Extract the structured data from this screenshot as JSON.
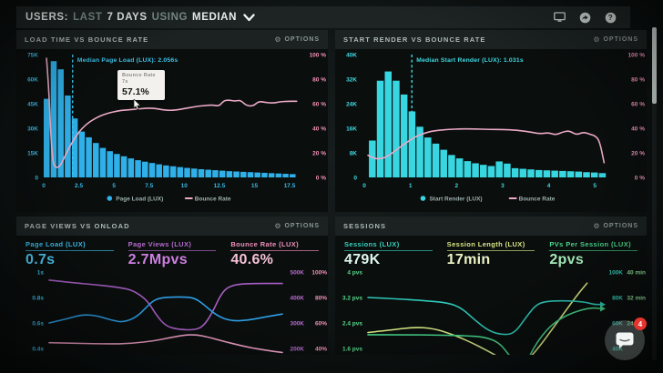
{
  "header": {
    "parts": [
      {
        "text": "USERS:"
      },
      {
        "text": "LAST"
      },
      {
        "text": "7 DAYS"
      },
      {
        "text": "USING"
      },
      {
        "text": "MEDIAN"
      }
    ],
    "icons": [
      "display-icon",
      "share-icon",
      "help-icon"
    ],
    "help_glyph": "?"
  },
  "labels": {
    "options": "OPTIONS",
    "gear_glyph": "⚙"
  },
  "panels": {
    "load_time": {
      "title": "LOAD TIME VS BOUNCE RATE",
      "tooltip": {
        "line1": "Bounce Rate",
        "line2": "7s",
        "value": "57.1%"
      }
    },
    "start_render": {
      "title": "START RENDER VS BOUNCE RATE"
    },
    "page_views": {
      "title": "PAGE VIEWS VS ONLOAD",
      "metrics": [
        {
          "label": "Page Load (LUX)",
          "value": "0.7s",
          "color": "#3cc0ee"
        },
        {
          "label": "Page Views (LUX)",
          "value": "2.7Mpvs",
          "color": "#b56cce"
        },
        {
          "label": "Bounce Rate (LUX)",
          "value": "40.6%",
          "color": "#f291bb"
        }
      ]
    },
    "sessions": {
      "title": "SESSIONS",
      "metrics": [
        {
          "label": "Sessions (LUX)",
          "value": "479K",
          "color": "#38d0bd"
        },
        {
          "label": "Session Length (LUX)",
          "value": "17min",
          "color": "#d9e884"
        },
        {
          "label": "PVs Per Session (LUX)",
          "value": "2pvs",
          "color": "#4bd88e"
        }
      ]
    }
  },
  "chat": {
    "badge": "4"
  },
  "chart_data": {
    "load_time": {
      "type": "bar",
      "bar_color": "#2fb0e8",
      "axis_color": "#3ab8e6",
      "right_color": "#f191b8",
      "line_color": "#ecaac6",
      "median_color": "#3fc4ea",
      "y_max": 75,
      "y_ticks": [
        "75K",
        "60K",
        "45K",
        "30K",
        "15K",
        "0"
      ],
      "right_ticks": [
        "100 %",
        "80 %",
        "60 %",
        "40 %",
        "20 %",
        "0 %"
      ],
      "x_ticks": [
        [
          0,
          "0"
        ],
        [
          2.5,
          "2.5"
        ],
        [
          5,
          "5"
        ],
        [
          7.5,
          "7.5"
        ],
        [
          10,
          "10"
        ],
        [
          12.5,
          "12.5"
        ],
        [
          15,
          "15"
        ],
        [
          17.5,
          "17.5"
        ]
      ],
      "bin": 0.5,
      "bars": [
        48,
        71,
        66,
        50,
        36,
        28,
        24.5,
        21,
        18,
        16,
        14.3,
        12.9,
        11.6,
        10.5,
        9.6,
        8.8,
        8,
        7.3,
        6.8,
        6.3,
        5.8,
        5.4,
        5,
        4.7,
        4.4,
        4.1,
        3.8,
        3.6,
        3.4,
        3.2,
        3,
        2.8,
        2.6,
        2.4,
        2.2,
        2
      ],
      "median_t": 2.056,
      "median_label": "Median Page Load (LUX): 2.056s",
      "line": [
        [
          0.2,
          97
        ],
        [
          0.35,
          75
        ],
        [
          0.5,
          35
        ],
        [
          0.65,
          13
        ],
        [
          0.8,
          8.5
        ],
        [
          1.0,
          8
        ],
        [
          1.2,
          10
        ],
        [
          1.5,
          17
        ],
        [
          1.8,
          24
        ],
        [
          2.1,
          30
        ],
        [
          2.5,
          37
        ],
        [
          3,
          43
        ],
        [
          3.5,
          47
        ],
        [
          4,
          50
        ],
        [
          4.5,
          52
        ],
        [
          5,
          53.5
        ],
        [
          5.5,
          54.5
        ],
        [
          6,
          55
        ],
        [
          6.5,
          55.5
        ],
        [
          7,
          56
        ],
        [
          7.5,
          56.5
        ],
        [
          8,
          56
        ],
        [
          8.5,
          55
        ],
        [
          9,
          54.5
        ],
        [
          9.5,
          55
        ],
        [
          10,
          56
        ],
        [
          10.5,
          57
        ],
        [
          11,
          58
        ],
        [
          11.5,
          58.5
        ],
        [
          12,
          59
        ],
        [
          12.5,
          58
        ],
        [
          12.8,
          62.5
        ],
        [
          13.2,
          63
        ],
        [
          13.6,
          62
        ],
        [
          14,
          63
        ],
        [
          14.4,
          58.5
        ],
        [
          14.9,
          58
        ],
        [
          15.3,
          62
        ],
        [
          15.8,
          61
        ],
        [
          16.3,
          60.5
        ],
        [
          16.8,
          61.5
        ],
        [
          17.3,
          62
        ],
        [
          18,
          62
        ]
      ],
      "legend": [
        {
          "label": "Page Load (LUX)",
          "color": "#2fb0e8",
          "marker": "dot"
        },
        {
          "label": "Bounce Rate",
          "color": "#ecaac6",
          "marker": "line"
        }
      ]
    },
    "start_render": {
      "type": "bar",
      "bar_color": "#38d6e0",
      "axis_color": "#3fd9e2",
      "right_color": "#f191b8",
      "line_color": "#ecaac6",
      "median_color": "#3fd9e2",
      "y_max": 40,
      "y_ticks": [
        "40K",
        "32K",
        "24K",
        "16K",
        "8K",
        "0"
      ],
      "right_ticks": [
        "100 %",
        "80 %",
        "60 %",
        "40 %",
        "20 %",
        "0 %"
      ],
      "x_ticks": [
        [
          0,
          "0"
        ],
        [
          1,
          "1"
        ],
        [
          2,
          "2"
        ],
        [
          3,
          "3"
        ],
        [
          4,
          "4"
        ],
        [
          5,
          "5"
        ]
      ],
      "bin": 0.172,
      "bars": [
        12,
        31.5,
        34.5,
        31.5,
        27,
        21.5,
        16.5,
        13,
        11,
        9,
        7.3,
        6.2,
        5.3,
        4.6,
        4.1,
        3.7,
        5.2,
        4.5,
        3,
        2.8,
        2.6,
        2.4,
        2.3,
        2.2,
        2.1,
        2,
        1.9,
        1.7,
        1.6,
        1.4
      ],
      "median_t": 1.031,
      "median_label": "Median Start Render (LUX): 1.031s",
      "line": [
        [
          0.08,
          18
        ],
        [
          0.2,
          15.5
        ],
        [
          0.35,
          15
        ],
        [
          0.5,
          17
        ],
        [
          0.7,
          22.5
        ],
        [
          0.9,
          28
        ],
        [
          1.1,
          33
        ],
        [
          1.3,
          36
        ],
        [
          1.5,
          38
        ],
        [
          1.8,
          39
        ],
        [
          2.1,
          39.5
        ],
        [
          2.4,
          39.5
        ],
        [
          2.7,
          39
        ],
        [
          3,
          39
        ],
        [
          3.3,
          38.5
        ],
        [
          3.6,
          37
        ],
        [
          3.8,
          35.5
        ],
        [
          4.0,
          36.5
        ],
        [
          4.15,
          34.5
        ],
        [
          4.3,
          37
        ],
        [
          4.45,
          38
        ],
        [
          4.6,
          34.5
        ],
        [
          4.75,
          37
        ],
        [
          4.9,
          35
        ],
        [
          5.0,
          34
        ],
        [
          5.1,
          30
        ],
        [
          5.2,
          12
        ]
      ],
      "legend": [
        {
          "label": "Start Render (LUX)",
          "color": "#38d6e0",
          "marker": "dot"
        },
        {
          "label": "Bounce Rate",
          "color": "#ecaac6",
          "marker": "line"
        }
      ]
    },
    "page_views": {
      "type": "line",
      "left_ticks": [
        "1s",
        "0.8s",
        "0.6s",
        "0.4s"
      ],
      "left_color": "#3cc0ee",
      "right1": {
        "labels": [
          "500K",
          "400K",
          "300K",
          "200K"
        ],
        "color": "#b56cce"
      },
      "right2": {
        "labels": [
          "100%",
          "80%",
          "60%",
          "40%"
        ],
        "color": "#f291bb"
      },
      "series": [
        {
          "name": "Page Views",
          "color": "#a85fc5",
          "min": 200,
          "max": 500,
          "points": [
            [
              0,
              468
            ],
            [
              0.1,
              458
            ],
            [
              0.2,
              450
            ],
            [
              0.3,
              440
            ],
            [
              0.36,
              428
            ],
            [
              0.42,
              390
            ],
            [
              0.46,
              330
            ],
            [
              0.5,
              288
            ],
            [
              0.55,
              275
            ],
            [
              0.62,
              272
            ],
            [
              0.66,
              285
            ],
            [
              0.7,
              340
            ],
            [
              0.74,
              420
            ],
            [
              0.78,
              448
            ],
            [
              0.85,
              455
            ],
            [
              1,
              455
            ]
          ]
        },
        {
          "name": "Page Load",
          "color": "#2f9fe8",
          "min": 0.4,
          "max": 1.0,
          "points": [
            [
              0,
              0.6
            ],
            [
              0.07,
              0.63
            ],
            [
              0.14,
              0.665
            ],
            [
              0.2,
              0.66
            ],
            [
              0.27,
              0.62
            ],
            [
              0.32,
              0.605
            ],
            [
              0.38,
              0.65
            ],
            [
              0.44,
              0.77
            ],
            [
              0.48,
              0.8
            ],
            [
              0.56,
              0.805
            ],
            [
              0.62,
              0.8
            ],
            [
              0.66,
              0.75
            ],
            [
              0.72,
              0.655
            ],
            [
              0.78,
              0.615
            ],
            [
              0.85,
              0.62
            ],
            [
              0.92,
              0.645
            ],
            [
              1,
              0.67
            ]
          ]
        },
        {
          "name": "Bounce Rate",
          "color": "#ee9ec4",
          "min": 40,
          "max": 100,
          "points": [
            [
              0,
              44.5
            ],
            [
              0.12,
              44
            ],
            [
              0.25,
              43.5
            ],
            [
              0.35,
              43.8
            ],
            [
              0.45,
              46
            ],
            [
              0.52,
              48.5
            ],
            [
              0.58,
              50.5
            ],
            [
              0.63,
              50.8
            ],
            [
              0.68,
              49
            ],
            [
              0.75,
              45.5
            ],
            [
              0.85,
              41
            ],
            [
              0.93,
              38.5
            ],
            [
              1,
              36.8
            ]
          ]
        }
      ]
    },
    "sessions": {
      "type": "line",
      "left_ticks": [
        "4 pvs",
        "3.2 pvs",
        "2.4 pvs",
        "1.6 pvs"
      ],
      "left_color": "#5ad98f",
      "right1": {
        "labels": [
          "100K",
          "80K",
          "60K",
          "40K"
        ],
        "color": "#38d0bd"
      },
      "right2": {
        "labels": [
          "40 min",
          "32 min",
          "24 min",
          ""
        ],
        "color": "#8fe39a"
      },
      "series": [
        {
          "name": "Session Length",
          "color": "#d9e884",
          "min": 16,
          "max": 40,
          "points": [
            [
              0,
              21
            ],
            [
              0.1,
              21.8
            ],
            [
              0.2,
              22.7
            ],
            [
              0.28,
              22.3
            ],
            [
              0.36,
              20.5
            ],
            [
              0.44,
              18
            ],
            [
              0.52,
              15
            ],
            [
              0.58,
              12.5
            ],
            [
              0.64,
              11
            ],
            [
              0.68,
              12
            ],
            [
              0.73,
              16
            ],
            [
              0.79,
              22
            ],
            [
              0.85,
              28
            ],
            [
              0.9,
              33
            ],
            [
              0.94,
              36.5
            ]
          ]
        },
        {
          "name": "Sessions",
          "color": "#2ec9b8",
          "min": 40,
          "max": 100,
          "arrow": true,
          "points": [
            [
              0,
              80
            ],
            [
              0.12,
              79
            ],
            [
              0.24,
              77.5
            ],
            [
              0.34,
              76
            ],
            [
              0.4,
              72
            ],
            [
              0.46,
              62
            ],
            [
              0.52,
              53.5
            ],
            [
              0.58,
              50.5
            ],
            [
              0.63,
              52
            ],
            [
              0.68,
              65
            ],
            [
              0.72,
              74
            ],
            [
              0.76,
              77
            ],
            [
              0.85,
              77.5
            ],
            [
              0.93,
              76.5
            ],
            [
              0.97,
              74.5
            ],
            [
              1,
              74.5
            ]
          ]
        },
        {
          "name": "PVs Per Session",
          "color": "#46d48a",
          "min": 1.6,
          "max": 4.0,
          "arrow": true,
          "points": [
            [
              0,
              2.03
            ],
            [
              0.15,
              2.03
            ],
            [
              0.3,
              2.02
            ],
            [
              0.42,
              2.0
            ],
            [
              0.5,
              1.96
            ],
            [
              0.56,
              1.8
            ],
            [
              0.6,
              1.45
            ],
            [
              0.64,
              1.05
            ],
            [
              0.68,
              1.15
            ],
            [
              0.72,
              1.75
            ],
            [
              0.78,
              2.3
            ],
            [
              0.84,
              2.6
            ],
            [
              0.9,
              2.78
            ],
            [
              0.96,
              2.88
            ],
            [
              1,
              2.85
            ]
          ]
        }
      ]
    }
  }
}
